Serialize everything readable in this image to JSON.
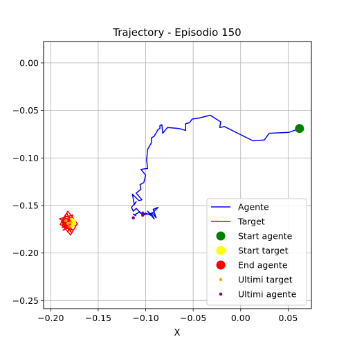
{
  "chart_data": {
    "type": "line",
    "title": "Trajectory - Episodio 150",
    "xlabel": "X",
    "ylabel": "",
    "xlim": [
      -0.2075,
      0.0745
    ],
    "ylim": [
      -0.2585,
      0.0225
    ],
    "xticks": [
      -0.2,
      -0.15,
      -0.1,
      -0.05,
      0.0,
      0.05
    ],
    "xtick_labels": [
      "−0.20",
      "−0.15",
      "−0.10",
      "−0.05",
      "0.00",
      "0.05"
    ],
    "yticks": [
      0.0,
      -0.05,
      -0.1,
      -0.15,
      -0.2,
      -0.25
    ],
    "ytick_labels": [
      "0.00",
      "−0.05",
      "−0.10",
      "−0.15",
      "−0.20",
      "−0.25"
    ],
    "grid": true,
    "legend_position": "lower-right",
    "series": [
      {
        "name": "Agente",
        "kind": "line",
        "color": "#0000ff",
        "x": [
          0.062,
          0.051,
          0.03,
          0.025,
          0.013,
          -0.017,
          -0.022,
          -0.021,
          -0.032,
          -0.044,
          -0.051,
          -0.054,
          -0.058,
          -0.058,
          -0.065,
          -0.077,
          -0.078,
          -0.082,
          -0.083,
          -0.085,
          -0.085,
          -0.087,
          -0.091,
          -0.094,
          -0.094,
          -0.098,
          -0.099,
          -0.098,
          -0.105,
          -0.1,
          -0.102,
          -0.106,
          -0.105,
          -0.11,
          -0.104,
          -0.107,
          -0.114,
          -0.112,
          -0.11,
          -0.115,
          -0.113,
          -0.11,
          -0.103,
          -0.093,
          -0.089,
          -0.092,
          -0.087,
          -0.094,
          -0.091,
          -0.098,
          -0.093,
          -0.1,
          -0.104,
          -0.102,
          -0.107,
          -0.112,
          -0.113,
          -0.11
        ],
        "y": [
          -0.069,
          -0.073,
          -0.074,
          -0.081,
          -0.082,
          -0.067,
          -0.068,
          -0.062,
          -0.055,
          -0.058,
          -0.059,
          -0.063,
          -0.064,
          -0.071,
          -0.069,
          -0.068,
          -0.069,
          -0.074,
          -0.065,
          -0.066,
          -0.069,
          -0.07,
          -0.077,
          -0.079,
          -0.084,
          -0.091,
          -0.102,
          -0.111,
          -0.112,
          -0.118,
          -0.126,
          -0.128,
          -0.133,
          -0.137,
          -0.144,
          -0.145,
          -0.138,
          -0.149,
          -0.146,
          -0.152,
          -0.156,
          -0.153,
          -0.16,
          -0.158,
          -0.163,
          -0.154,
          -0.152,
          -0.159,
          -0.164,
          -0.156,
          -0.161,
          -0.158,
          -0.161,
          -0.16,
          -0.157,
          -0.16,
          -0.159,
          -0.161
        ]
      },
      {
        "name": "Target",
        "kind": "line",
        "color": "#ff0000",
        "x": [
          -0.178,
          -0.186,
          -0.181,
          -0.19,
          -0.183,
          -0.177,
          -0.187,
          -0.175,
          -0.184,
          -0.188,
          -0.179,
          -0.172,
          -0.182,
          -0.189,
          -0.176,
          -0.185,
          -0.18,
          -0.174,
          -0.186,
          -0.178,
          -0.183,
          -0.191,
          -0.177,
          -0.181,
          -0.184,
          -0.173,
          -0.188,
          -0.179,
          -0.182,
          -0.176,
          -0.185,
          -0.18,
          -0.183
        ],
        "y": [
          -0.168,
          -0.163,
          -0.174,
          -0.17,
          -0.158,
          -0.172,
          -0.176,
          -0.166,
          -0.161,
          -0.171,
          -0.181,
          -0.169,
          -0.156,
          -0.167,
          -0.176,
          -0.173,
          -0.162,
          -0.17,
          -0.165,
          -0.179,
          -0.168,
          -0.164,
          -0.16,
          -0.175,
          -0.167,
          -0.171,
          -0.173,
          -0.163,
          -0.178,
          -0.166,
          -0.169,
          -0.172,
          -0.168
        ]
      },
      {
        "name": "Start agente",
        "kind": "scatter",
        "color": "#008000",
        "size": "large",
        "points": [
          [
            0.062,
            -0.069
          ]
        ]
      },
      {
        "name": "Start target",
        "kind": "scatter",
        "color": "#ffff00",
        "size": "large",
        "points": [
          [
            -0.178,
            -0.168
          ]
        ]
      },
      {
        "name": "End agente",
        "kind": "scatter",
        "color": "#ff0000",
        "size": "large",
        "points": [
          [
            -0.183,
            -0.168
          ]
        ]
      },
      {
        "name": "Ultimi target",
        "kind": "scatter",
        "color": "#ffa500",
        "size": "small",
        "points": [
          [
            -0.182,
            -0.169
          ],
          [
            -0.18,
            -0.172
          ],
          [
            -0.184,
            -0.166
          ],
          [
            -0.179,
            -0.168
          ]
        ]
      },
      {
        "name": "Ultimi agente",
        "kind": "scatter",
        "color": "#800080",
        "size": "small",
        "points": [
          [
            -0.113,
            -0.163
          ],
          [
            -0.103,
            -0.16
          ],
          [
            -0.103,
            -0.158
          ]
        ]
      }
    ]
  }
}
